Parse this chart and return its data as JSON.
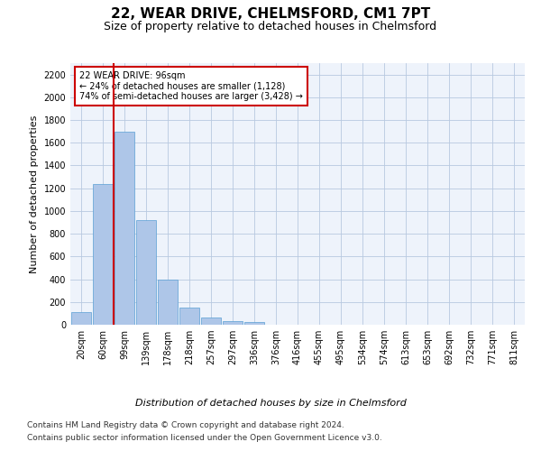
{
  "title": "22, WEAR DRIVE, CHELMSFORD, CM1 7PT",
  "subtitle": "Size of property relative to detached houses in Chelmsford",
  "xlabel": "Distribution of detached houses by size in Chelmsford",
  "ylabel": "Number of detached properties",
  "categories": [
    "20sqm",
    "60sqm",
    "99sqm",
    "139sqm",
    "178sqm",
    "218sqm",
    "257sqm",
    "297sqm",
    "336sqm",
    "376sqm",
    "416sqm",
    "455sqm",
    "495sqm",
    "534sqm",
    "574sqm",
    "613sqm",
    "653sqm",
    "692sqm",
    "732sqm",
    "771sqm",
    "811sqm"
  ],
  "values": [
    110,
    1240,
    1700,
    920,
    400,
    150,
    65,
    35,
    25,
    0,
    0,
    0,
    0,
    0,
    0,
    0,
    0,
    0,
    0,
    0,
    0
  ],
  "bar_color": "#aec6e8",
  "bar_edge_color": "#5a9fd4",
  "vline_color": "#cc0000",
  "annotation_text": "22 WEAR DRIVE: 96sqm\n← 24% of detached houses are smaller (1,128)\n74% of semi-detached houses are larger (3,428) →",
  "annotation_box_color": "#ffffff",
  "annotation_box_edge_color": "#cc0000",
  "ylim": [
    0,
    2300
  ],
  "yticks": [
    0,
    200,
    400,
    600,
    800,
    1000,
    1200,
    1400,
    1600,
    1800,
    2000,
    2200
  ],
  "footer_line1": "Contains HM Land Registry data © Crown copyright and database right 2024.",
  "footer_line2": "Contains public sector information licensed under the Open Government Licence v3.0.",
  "plot_bg_color": "#eef3fb",
  "title_fontsize": 11,
  "subtitle_fontsize": 9,
  "ylabel_fontsize": 8,
  "tick_fontsize": 7,
  "annotation_fontsize": 7,
  "xlabel_fontsize": 8,
  "footer_fontsize": 6.5
}
